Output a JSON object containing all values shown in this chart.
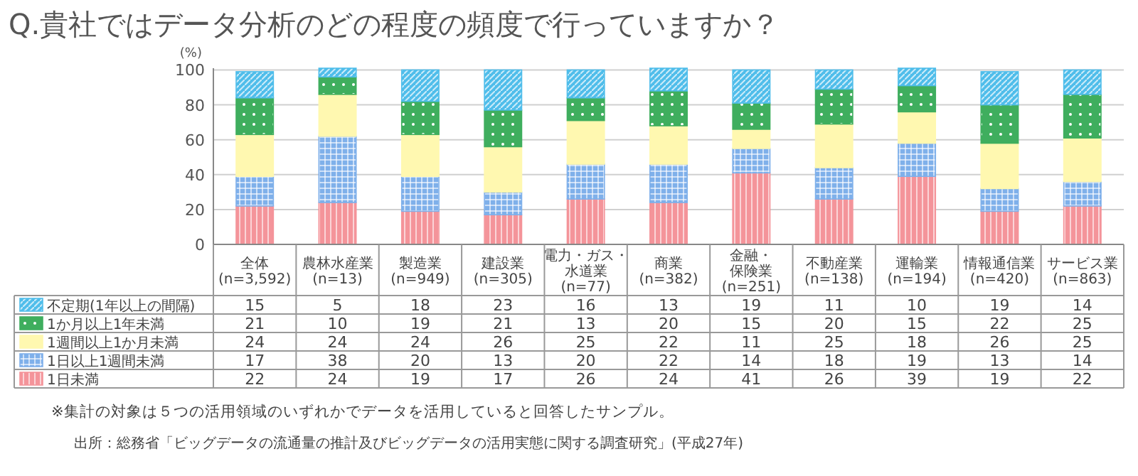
{
  "chart_data": {
    "type": "bar",
    "stacked": true,
    "title": "Q.貴社ではデータ分析のどの程度の頻度で行っていますか？",
    "ylabel": "(%)",
    "categories": [
      "全体\n(n=3,592)",
      "農林水産業\n(n=13)",
      "製造業\n(n=949)",
      "建設業\n(n=305)",
      "電力・ガス・水道業\n(n=77)",
      "商業\n(n=382)",
      "金融・保険業\n(n=251)",
      "不動産業\n(n=138)",
      "運輸業\n(n=194)",
      "情報通信業\n(n=420)",
      "サービス業\n(n=863)"
    ],
    "series": [
      {
        "name": "1日未満",
        "color": "#f4949a",
        "values": [
          22,
          24,
          19,
          17,
          26,
          24,
          41,
          26,
          39,
          19,
          22
        ]
      },
      {
        "name": "1日以上1週間未満",
        "color": "#7fb0ea",
        "values": [
          17,
          38,
          20,
          13,
          20,
          22,
          14,
          18,
          19,
          13,
          14
        ]
      },
      {
        "name": "1週間以上1か月未満",
        "color": "#fff8b0",
        "values": [
          24,
          24,
          24,
          26,
          25,
          22,
          11,
          25,
          18,
          26,
          25
        ]
      },
      {
        "name": "1か月以上1年未満",
        "color": "#3fae5e",
        "values": [
          21,
          10,
          19,
          21,
          13,
          20,
          15,
          20,
          15,
          22,
          25
        ]
      },
      {
        "name": "不定期(1年以上の間隔)",
        "color": "#4fbdea",
        "values": [
          15,
          5,
          18,
          23,
          16,
          13,
          19,
          11,
          10,
          19,
          14
        ]
      }
    ],
    "ylim": [
      0,
      101
    ],
    "yticks": [
      0,
      20,
      40,
      60,
      80,
      100
    ],
    "grid": "y",
    "legend": "bottom",
    "data_labels": true,
    "annotations": [
      "※集計の対象は５つの活用領域のいずれかでデータを活用していると回答したサンプル。",
      "出所：総務省「ビッグデータの流通量の推計及びビッグデータの活用実態に関する調査研究」(平成27年)"
    ]
  }
}
